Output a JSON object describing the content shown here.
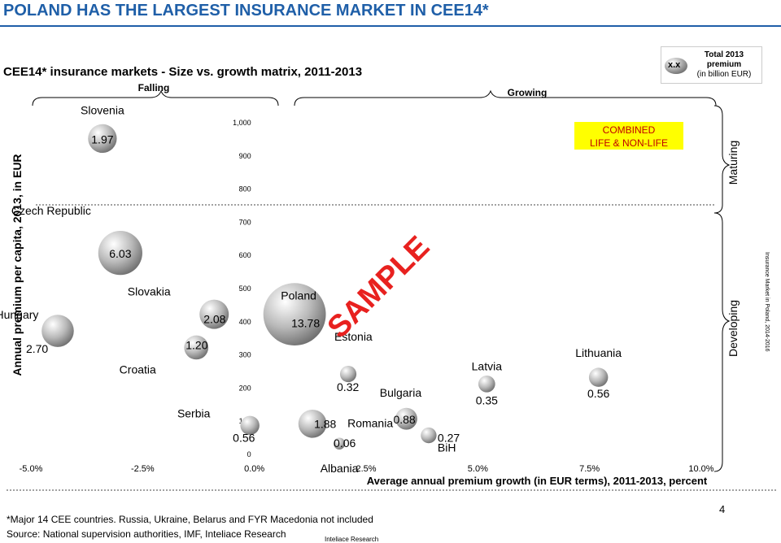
{
  "page": {
    "title": "POLAND HAS THE LARGEST INSURANCE MARKET IN CEE14*",
    "subtitle": "CEE14* insurance markets - Size vs. growth matrix, 2011-2013",
    "footnote": "*Major 14 CEE countries. Russia, Ukraine, Belarus and FYR Macedonia not included",
    "source": "Source: National supervision authorities, IMF, Inteliace Research",
    "company": "Inteliace Research",
    "page_number": "4",
    "side_note": "Insurance Market in Poland, 2014-2016",
    "watermark": "SAMPLE"
  },
  "legend": {
    "sample_label": "x.x",
    "title_lines": [
      "Total 2013",
      "premium",
      "(in billion EUR)"
    ]
  },
  "annotations": {
    "falling": "Falling",
    "growing": "Growing",
    "maturing": "Maturing",
    "developing": "Developing",
    "segment": [
      "COMBINED",
      "LIFE & NON-LIFE"
    ]
  },
  "chart_data": {
    "type": "scatter",
    "title": "CEE14* insurance markets - Size vs. growth matrix, 2011-2013",
    "xlabel": "Average annual premium growth (in EUR terms), 2011-2013, percent",
    "ylabel": "Annual premium per capita, 2013, in EUR",
    "xlim": [
      -5.0,
      10.0
    ],
    "ylim": [
      0,
      1000
    ],
    "x_ticks": [
      "-5.0%",
      "-2.5%",
      "0.0%",
      "2.5%",
      "5.0%",
      "7.5%",
      "10.0%"
    ],
    "y_ticks": [
      "0",
      "100",
      "200",
      "300",
      "400",
      "500",
      "600",
      "700",
      "800",
      "900",
      "1,000"
    ],
    "size_metric": "Total 2013 premium (in billion EUR)",
    "points": [
      {
        "country": "Slovenia",
        "x": -3.4,
        "y": 950,
        "size": "1.97"
      },
      {
        "country": "Czech Republic",
        "x": -3.0,
        "y": 605,
        "size": "6.03"
      },
      {
        "country": "Hungary",
        "x": -4.4,
        "y": 370,
        "size": "2.70"
      },
      {
        "country": "Slovakia",
        "x": -0.9,
        "y": 420,
        "size": "2.08"
      },
      {
        "country": "Croatia",
        "x": -1.3,
        "y": 320,
        "size": "1.20"
      },
      {
        "country": "Poland",
        "x": 0.9,
        "y": 420,
        "size": "13.78"
      },
      {
        "country": "Serbia",
        "x": -0.1,
        "y": 85,
        "size": "0.56"
      },
      {
        "country": "Estonia",
        "x": 2.1,
        "y": 240,
        "size": "0.32"
      },
      {
        "country": "Romania",
        "x": 1.3,
        "y": 90,
        "size": "1.88"
      },
      {
        "country": "Albania",
        "x": 1.9,
        "y": 30,
        "size": "0.06"
      },
      {
        "country": "Bulgaria",
        "x": 3.4,
        "y": 105,
        "size": "0.88"
      },
      {
        "country": "BiH",
        "x": 3.9,
        "y": 55,
        "size": "0.27"
      },
      {
        "country": "Latvia",
        "x": 5.2,
        "y": 210,
        "size": "0.35"
      },
      {
        "country": "Lithuania",
        "x": 7.7,
        "y": 230,
        "size": "0.56"
      }
    ]
  },
  "colors": {
    "title_blue": "#1f5fa8",
    "watermark_red": "#e8211f",
    "segment_box": "#ffff00",
    "segment_text": "#c00000",
    "bubble_light": "#ffffff",
    "bubble_dark": "#6e6e6e"
  }
}
